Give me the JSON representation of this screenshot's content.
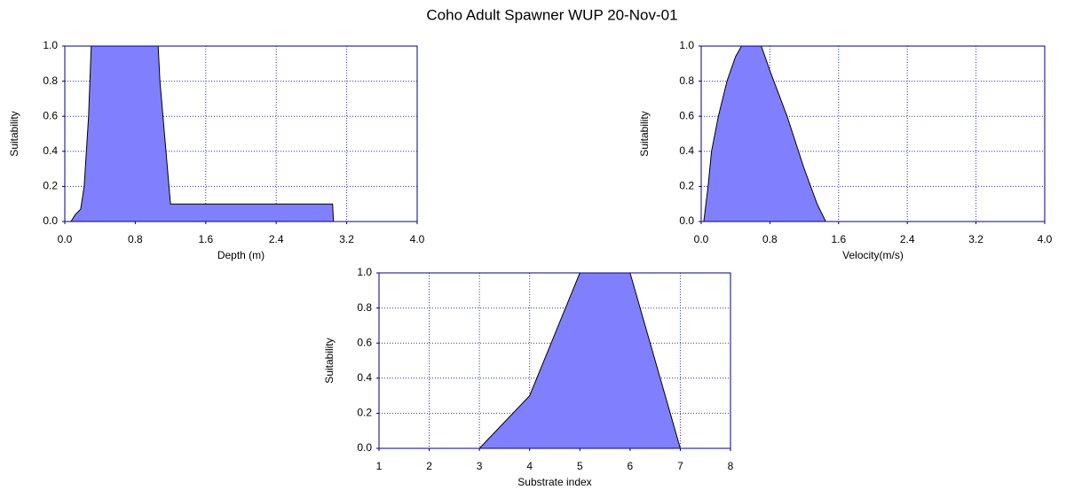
{
  "title": "Coho  Adult Spawner WUP 20-Nov-01",
  "chart_data": [
    {
      "type": "area",
      "xlabel": "Depth (m)",
      "ylabel": "Suitability",
      "color": "#8080ff",
      "grid": true,
      "x": [
        0,
        0.07,
        0.12,
        0.18,
        0.22,
        0.27,
        0.3,
        1.06,
        1.08,
        1.2,
        3.04,
        3.05
      ],
      "values": [
        0,
        0,
        0.04,
        0.07,
        0.2,
        0.6,
        1.0,
        1.0,
        0.8,
        0.1,
        0.1,
        0
      ],
      "xlim": [
        0,
        4
      ],
      "ylim": [
        0,
        1
      ],
      "xticks": [
        {
          "value": 0,
          "label": "0.0"
        },
        0.8,
        1.6,
        2.4,
        3.2,
        {
          "value": 4,
          "label": "4.0"
        }
      ],
      "yticks": [
        {
          "value": 0,
          "label": "0.0"
        },
        0.2,
        0.4,
        0.6,
        0.8,
        {
          "value": 1,
          "label": "1.0"
        }
      ]
    },
    {
      "type": "area",
      "xlabel": "Velocity(m/s)",
      "ylabel": "Suitability",
      "color": "#8080ff",
      "grid": true,
      "x": [
        0.03,
        0.08,
        0.12,
        0.2,
        0.3,
        0.4,
        0.47,
        0.7,
        0.8,
        1.0,
        1.2,
        1.35,
        1.45
      ],
      "values": [
        0,
        0.2,
        0.4,
        0.6,
        0.8,
        0.94,
        1.0,
        1.0,
        0.86,
        0.6,
        0.3,
        0.1,
        0
      ],
      "xlim": [
        0,
        4
      ],
      "ylim": [
        0,
        1
      ],
      "xticks": [
        {
          "value": 0,
          "label": "0.0"
        },
        0.8,
        1.6,
        2.4,
        3.2,
        {
          "value": 4,
          "label": "4.0"
        }
      ],
      "yticks": [
        {
          "value": 0,
          "label": "0.0"
        },
        0.2,
        0.4,
        0.6,
        0.8,
        {
          "value": 1,
          "label": "1.0"
        }
      ]
    },
    {
      "type": "area",
      "xlabel": "Substrate index",
      "ylabel": "Suitability",
      "color": "#8080ff",
      "grid": true,
      "x": [
        1,
        3,
        4,
        5,
        6,
        7,
        8
      ],
      "values": [
        0,
        0,
        0.3,
        1,
        1,
        0,
        0
      ],
      "xlim": [
        1,
        8
      ],
      "ylim": [
        0,
        1
      ],
      "xticks": [
        1,
        2,
        3,
        4,
        5,
        6,
        7,
        8
      ],
      "yticks": [
        {
          "value": 0,
          "label": "0.0"
        },
        0.2,
        0.4,
        0.6,
        0.8,
        {
          "value": 1,
          "label": "1.0"
        }
      ]
    }
  ]
}
